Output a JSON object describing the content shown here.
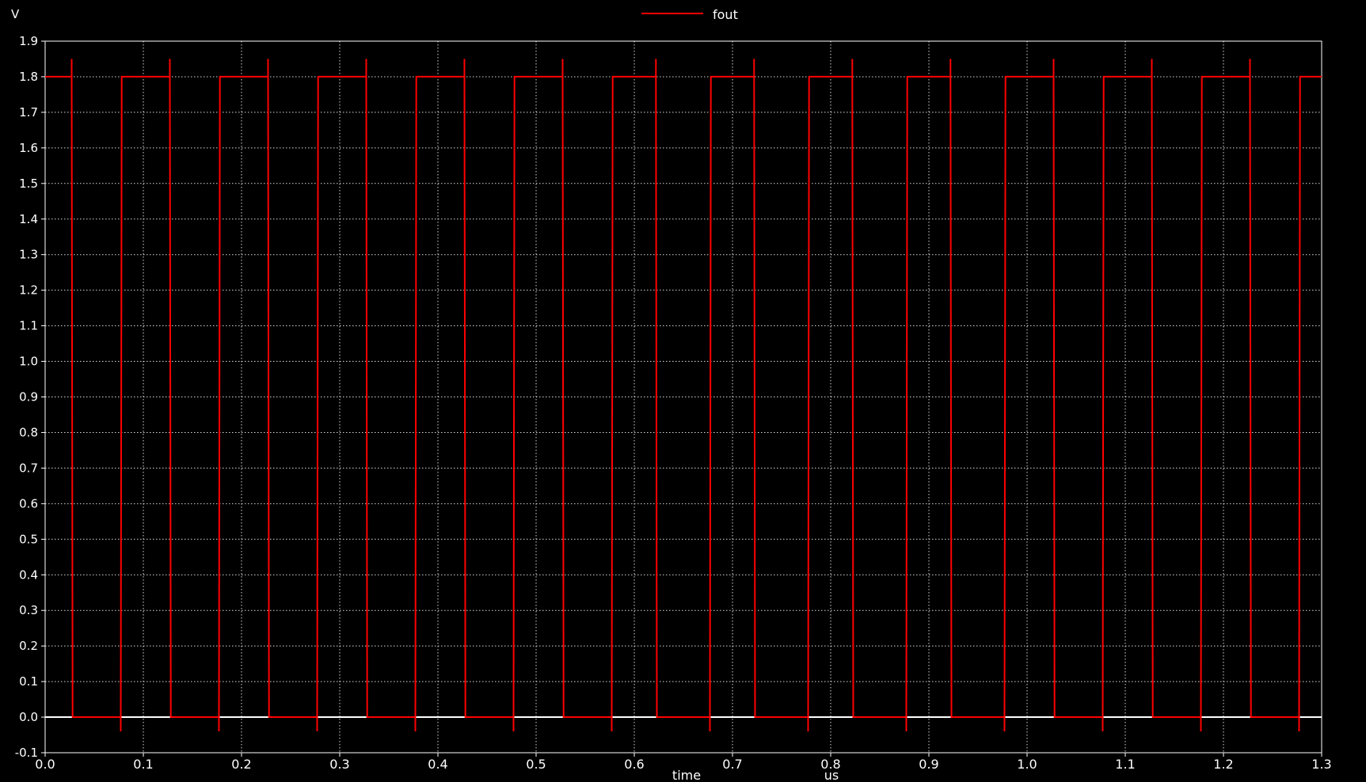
{
  "chart_data": {
    "type": "line",
    "title": "",
    "xlabel": "time",
    "x_unit": "us",
    "ylabel": "V",
    "xlim": [
      0.0,
      1.3
    ],
    "ylim": [
      -0.1,
      1.9
    ],
    "x_ticks": [
      "0.0",
      "0.1",
      "0.2",
      "0.3",
      "0.4",
      "0.5",
      "0.6",
      "0.7",
      "0.8",
      "0.9",
      "1.0",
      "1.1",
      "1.2",
      "1.3"
    ],
    "y_ticks": [
      "-0.1",
      "0.0",
      "0.1",
      "0.2",
      "0.3",
      "0.4",
      "0.5",
      "0.6",
      "0.7",
      "0.8",
      "0.9",
      "1.0",
      "1.1",
      "1.2",
      "1.3",
      "1.4",
      "1.5",
      "1.6",
      "1.7",
      "1.8",
      "1.9"
    ],
    "grid": true,
    "legend_position": "top-center",
    "series": [
      {
        "name": "fout",
        "color": "#ff0000",
        "high_level": 1.8,
        "low_level": 0.0,
        "overshoot": 1.85,
        "undershoot": -0.04,
        "x": [
          0.0,
          0.027,
          0.028,
          0.077,
          0.078,
          0.127,
          0.128,
          0.177,
          0.178,
          0.227,
          0.228,
          0.277,
          0.278,
          0.327,
          0.328,
          0.377,
          0.378,
          0.427,
          0.428,
          0.477,
          0.478,
          0.527,
          0.528,
          0.577,
          0.578,
          0.622,
          0.623,
          0.677,
          0.678,
          0.722,
          0.723,
          0.777,
          0.778,
          0.822,
          0.823,
          0.877,
          0.878,
          0.922,
          0.923,
          0.977,
          0.978,
          1.027,
          1.028,
          1.077,
          1.078,
          1.127,
          1.128,
          1.177,
          1.178,
          1.227,
          1.228,
          1.277,
          1.278,
          1.3
        ],
        "y": [
          1.8,
          1.8,
          0.0,
          0.0,
          1.8,
          1.8,
          0.0,
          0.0,
          1.8,
          1.8,
          0.0,
          0.0,
          1.8,
          1.8,
          0.0,
          0.0,
          1.8,
          1.8,
          0.0,
          0.0,
          1.8,
          1.8,
          0.0,
          0.0,
          1.8,
          1.8,
          0.0,
          0.0,
          1.8,
          1.8,
          0.0,
          0.0,
          1.8,
          1.8,
          0.0,
          0.0,
          1.8,
          1.8,
          0.0,
          0.0,
          1.8,
          1.8,
          0.0,
          0.0,
          1.8,
          1.8,
          0.0,
          0.0,
          1.8,
          1.8,
          0.0,
          0.0,
          1.8,
          1.8
        ]
      }
    ]
  }
}
